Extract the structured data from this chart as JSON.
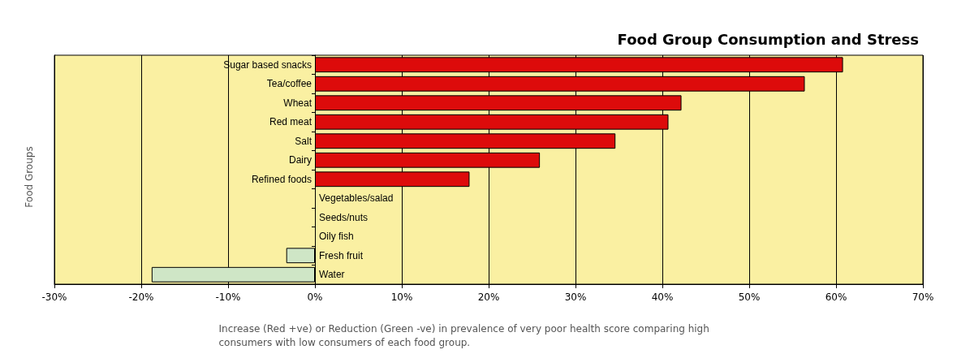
{
  "chart_data": {
    "type": "bar",
    "orientation": "horizontal",
    "title": "Food Group Consumption and Stress",
    "ylabel": "Food Groups",
    "xlabel": "Increase (Red +ve) or Reduction (Green -ve) in prevalence of very poor health score comparing high consumers with low consumers of each food group.",
    "categories": [
      "Sugar based snacks",
      "Tea/coffee",
      "Wheat",
      "Red meat",
      "Salt",
      "Dairy",
      "Refined foods",
      "Vegetables/salad",
      "Seeds/nuts",
      "Oily fish",
      "Fresh fruit",
      "Water"
    ],
    "values": [
      60.8,
      56.4,
      42.2,
      40.7,
      34.6,
      25.9,
      17.8,
      0,
      0,
      0,
      -3.3,
      -18.8
    ],
    "colors": [
      "#dd0b0b",
      "#dd0b0b",
      "#dd0b0b",
      "#dd0b0b",
      "#dd0b0b",
      "#dd0b0b",
      "#dd0b0b",
      "#cfe6c6",
      "#cfe6c6",
      "#cfe6c6",
      "#cfe6c6",
      "#cfe6c6"
    ],
    "xlim": [
      -30,
      70
    ],
    "xticks": [
      {
        "value": -30,
        "label": "-30%"
      },
      {
        "value": -20,
        "label": "-20%"
      },
      {
        "value": -10,
        "label": "-10%"
      },
      {
        "value": 0,
        "label": "0%"
      },
      {
        "value": 10,
        "label": "10%"
      },
      {
        "value": 20,
        "label": "20%"
      },
      {
        "value": 30,
        "label": "30%"
      },
      {
        "value": 40,
        "label": "40%"
      },
      {
        "value": 50,
        "label": "50%"
      },
      {
        "value": 60,
        "label": "60%"
      },
      {
        "value": 70,
        "label": "70%"
      }
    ],
    "grid": "x"
  }
}
